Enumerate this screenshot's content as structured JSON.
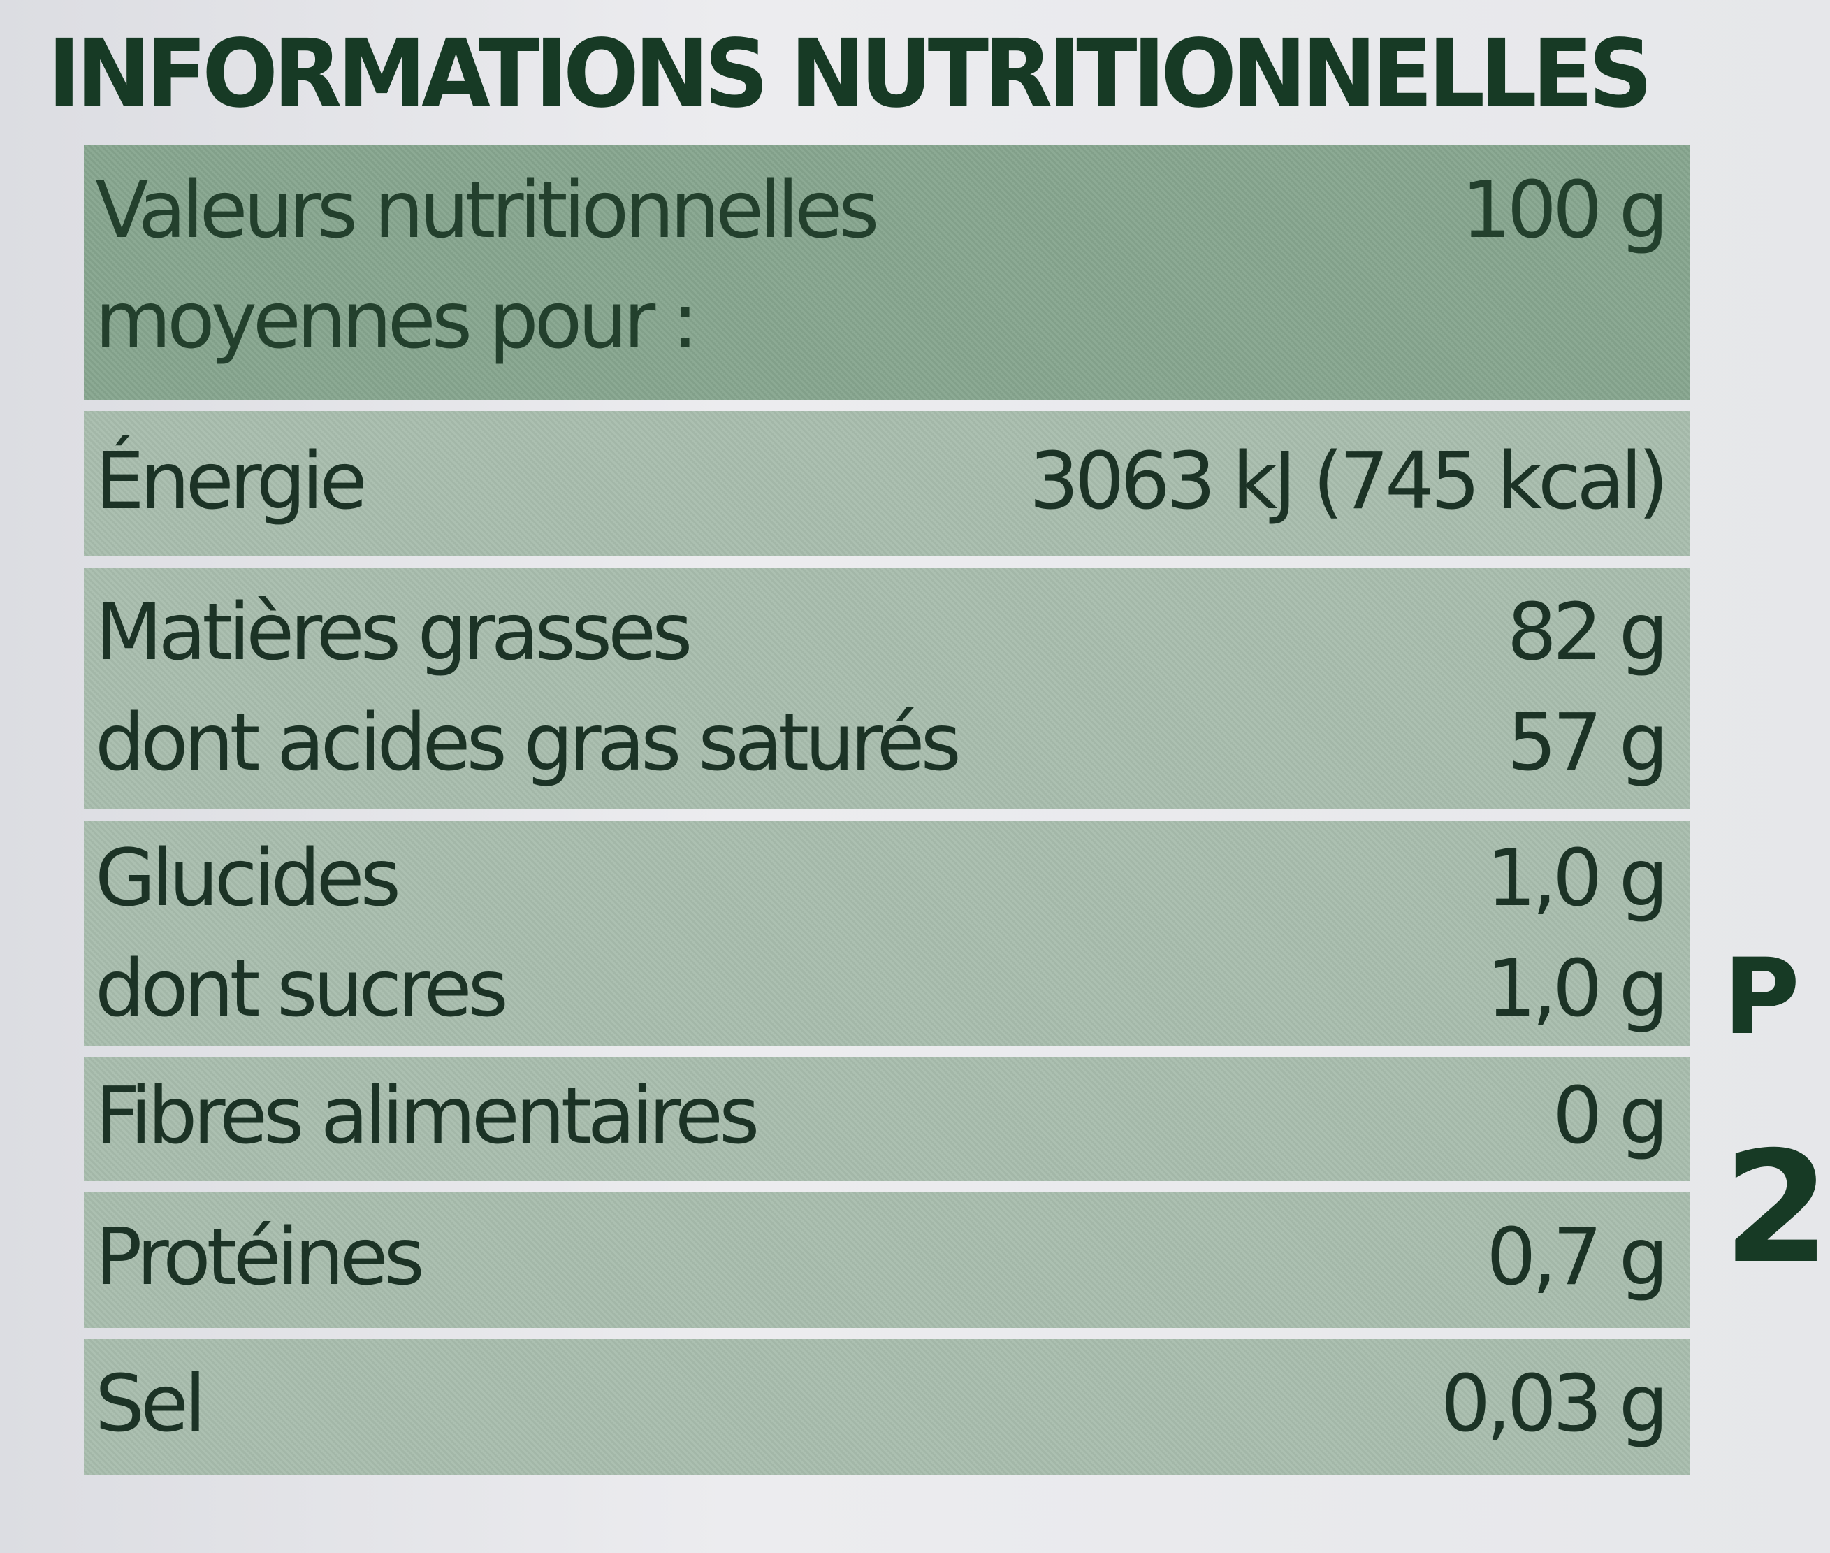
{
  "title": "INFORMATIONS NUTRITIONNELLES",
  "header": {
    "label_line1": "Valeurs nutritionnelles",
    "label_line2": "moyennes pour :",
    "value": "100 g"
  },
  "rows": [
    {
      "lines": [
        {
          "label": "Énergie",
          "value": "3063 kJ (745 kcal)"
        }
      ]
    },
    {
      "lines": [
        {
          "label": "Matières grasses",
          "value": "82 g"
        },
        {
          "label": "dont acides gras saturés",
          "value": "57 g"
        }
      ]
    },
    {
      "lines": [
        {
          "label": "Glucides",
          "value": "1,0 g"
        },
        {
          "label": "dont sucres",
          "value": "1,0 g"
        }
      ]
    },
    {
      "lines": [
        {
          "label": "Fibres alimentaires",
          "value": "0 g"
        }
      ]
    },
    {
      "lines": [
        {
          "label": "Protéines",
          "value": "0,7 g"
        }
      ]
    },
    {
      "lines": [
        {
          "label": "Sel",
          "value": "0,03 g"
        }
      ]
    }
  ],
  "edge_text": [
    "P",
    "2"
  ],
  "colors": {
    "title": "#173a25",
    "header_bg": "#86a58e",
    "row_bg": "#a8bdad",
    "text": "#1c3326"
  }
}
